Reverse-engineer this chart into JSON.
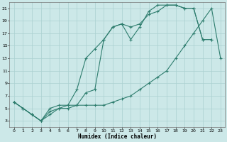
{
  "xlabel": "Humidex (Indice chaleur)",
  "xlim": [
    -0.5,
    23.5
  ],
  "ylim": [
    2,
    22
  ],
  "yticks": [
    3,
    5,
    7,
    9,
    11,
    13,
    15,
    17,
    19,
    21
  ],
  "xticks": [
    0,
    1,
    2,
    3,
    4,
    5,
    6,
    7,
    8,
    9,
    10,
    11,
    12,
    13,
    14,
    15,
    16,
    17,
    18,
    19,
    20,
    21,
    22,
    23
  ],
  "line_color": "#2e7d6e",
  "bg_color": "#cce8e8",
  "grid_color": "#aad0d0",
  "line1_x": [
    0,
    1,
    2,
    3,
    4,
    5,
    6,
    7,
    8,
    9,
    10,
    11,
    12,
    13,
    14,
    15,
    16,
    17,
    18,
    19,
    20,
    21,
    22
  ],
  "line1_y": [
    6,
    5,
    4,
    3,
    5,
    5.5,
    5.5,
    8,
    13,
    14.5,
    16,
    18,
    18.5,
    16,
    18,
    20.5,
    21.5,
    21.5,
    21.5,
    21,
    21,
    16,
    16
  ],
  "line2_x": [
    0,
    1,
    2,
    3,
    4,
    5,
    6,
    7,
    8,
    9,
    10,
    11,
    12,
    13,
    14,
    15,
    16,
    17,
    18,
    19,
    20,
    21,
    22
  ],
  "line2_y": [
    6,
    5,
    4,
    3,
    4.5,
    5,
    5.5,
    5.5,
    7.5,
    8,
    16,
    18,
    18.5,
    18,
    18.5,
    20,
    20.5,
    21.5,
    21.5,
    21,
    21,
    16,
    16
  ],
  "line3_x": [
    0,
    1,
    2,
    3,
    4,
    5,
    6,
    7,
    8,
    9,
    10,
    11,
    12,
    13,
    14,
    15,
    16,
    17,
    18,
    19,
    20,
    21,
    22,
    23
  ],
  "line3_y": [
    6,
    5,
    4,
    3,
    4,
    5,
    5,
    5.5,
    5.5,
    5.5,
    5.5,
    6,
    6.5,
    7,
    8,
    9,
    10,
    11,
    13,
    15,
    17,
    19,
    21,
    13
  ]
}
